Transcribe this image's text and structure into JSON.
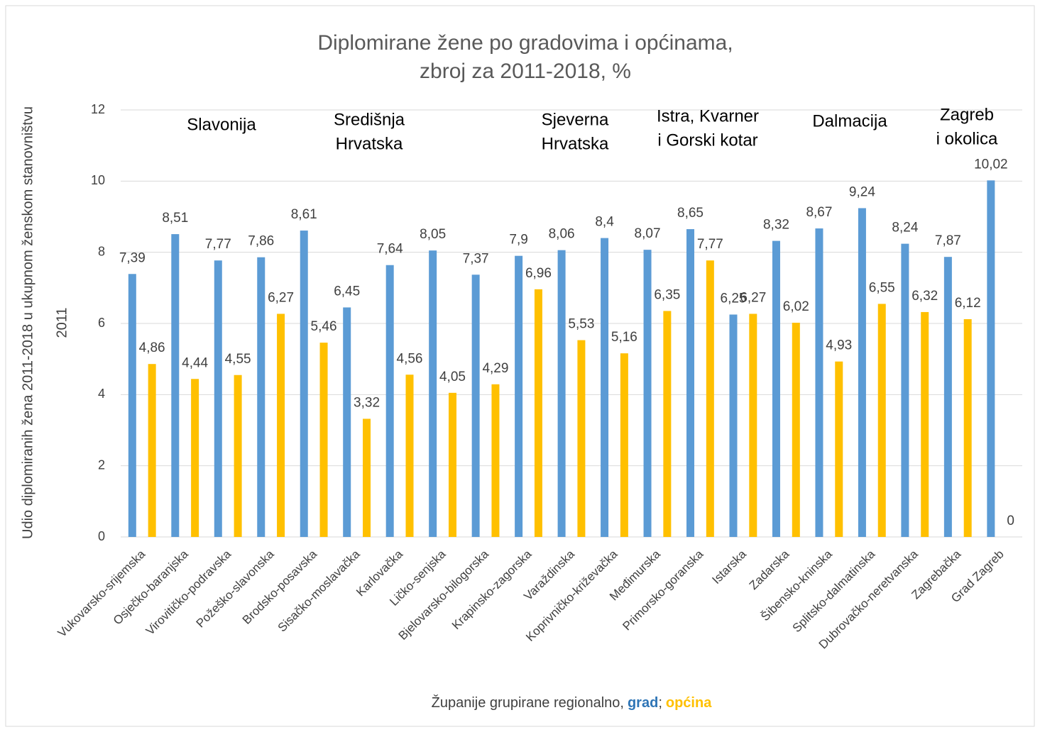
{
  "chart_data": {
    "type": "bar",
    "title": [
      "Diplomirane žene po gradovima i općinama,",
      "zbroj za 2011-2018, %"
    ],
    "y_label": [
      "Udio diplomiranih žena 2011-2018 u ukupnom ženskom stanovništvu",
      "2011"
    ],
    "x_label": "Županije grupirane regionalno,",
    "legend_separator": ";",
    "categories": [
      "Vukovarsko-srijemska",
      "Osječko-baranjska",
      "Virovitičko-podravska",
      "Požeško-slavonska",
      "Brodsko-posavska",
      "Sisačko-moslavačka",
      "Karlovačka",
      "Ličko-senjska",
      "Bjelovarsko-bilogorska",
      "Krapinsko-zagorska",
      "Varaždinska",
      "Koprivničko-križevačka",
      "Međimurska",
      "Primorsko-goranska",
      "Istarska",
      "Zadarska",
      "Šibensko-kninska",
      "Splitsko-dalmatinska",
      "Dubrovačko-neretvanska",
      "Zagrebačka",
      "Grad Zagreb"
    ],
    "series": [
      {
        "name": "grad",
        "color": "#5b9bd5",
        "values": [
          7.39,
          8.51,
          7.77,
          7.86,
          8.61,
          6.45,
          7.64,
          8.05,
          7.37,
          7.9,
          8.06,
          8.4,
          8.07,
          8.65,
          6.25,
          8.32,
          8.67,
          9.24,
          8.24,
          7.87,
          10.02
        ],
        "value_labels": [
          "7,39",
          "8,51",
          "7,77",
          "7,86",
          "8,61",
          "6,45",
          "7,64",
          "8,05",
          "7,37",
          "7,9",
          "8,06",
          "8,4",
          "8,07",
          "8,65",
          "6,25",
          "8,32",
          "8,67",
          "9,24",
          "8,24",
          "7,87",
          "10,02"
        ]
      },
      {
        "name": "općina",
        "color": "#ffc000",
        "values": [
          4.86,
          4.44,
          4.55,
          6.27,
          5.46,
          3.32,
          4.56,
          4.05,
          4.29,
          6.96,
          5.53,
          5.16,
          6.35,
          7.77,
          6.27,
          6.02,
          4.93,
          6.55,
          6.32,
          6.12,
          0
        ],
        "value_labels": [
          "4,86",
          "4,44",
          "4,55",
          "6,27",
          "5,46",
          "3,32",
          "4,56",
          "4,05",
          "4,29",
          "6,96",
          "5,53",
          "5,16",
          "6,35",
          "7,77",
          "6,27",
          "6,02",
          "4,93",
          "6,55",
          "6,32",
          "6,12",
          "0"
        ]
      }
    ],
    "annotations": [
      [
        "Slavonija"
      ],
      [
        "Središnja",
        "Hrvatska"
      ],
      [
        "Sjeverna",
        "Hrvatska"
      ],
      [
        "Istra, Kvarner",
        "i Gorski kotar"
      ],
      [
        "Dalmacija"
      ],
      [
        "Zagreb",
        "i okolica"
      ]
    ],
    "ylim": [
      0,
      12
    ],
    "yticks": [
      0,
      2,
      4,
      6,
      8,
      10,
      12
    ],
    "grid": true
  }
}
